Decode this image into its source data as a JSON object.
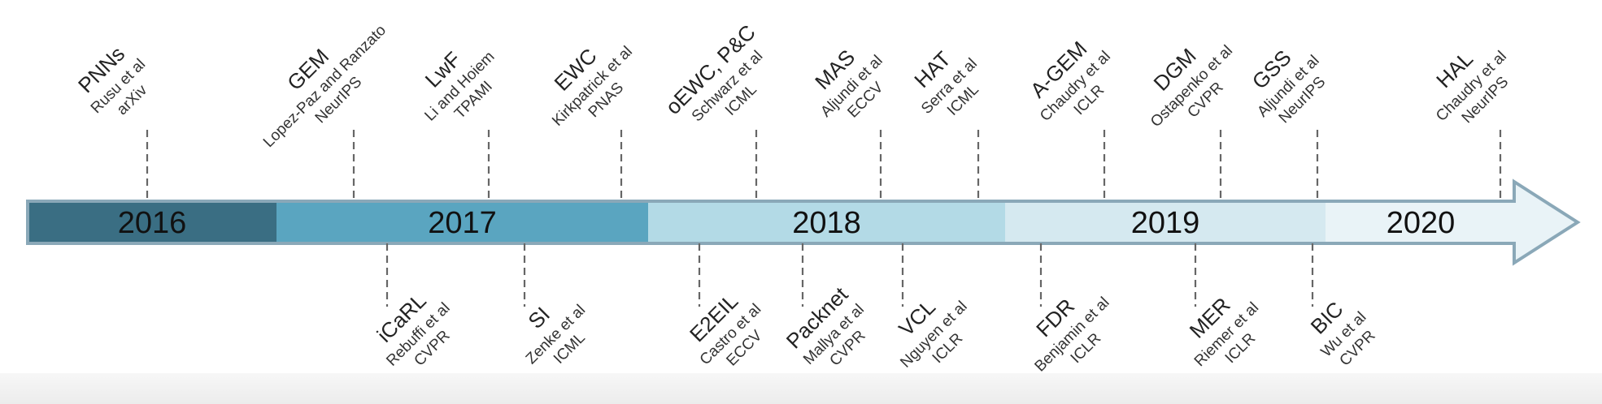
{
  "timeline": {
    "segments": [
      {
        "year": "2016",
        "color": "#3a6e83"
      },
      {
        "year": "2017",
        "color": "#5aa5c0"
      },
      {
        "year": "2018",
        "color": "#b3dae6"
      },
      {
        "year": "2019",
        "color": "#d5e9f0"
      },
      {
        "year": "2020",
        "color": "#e9f3f7"
      }
    ],
    "above": [
      {
        "name": "PNNs",
        "author": "Rusu et al",
        "venue": "arXiv"
      },
      {
        "name": "GEM",
        "author": "Lopez-Paz and Ranzato",
        "venue": "NeurIPS"
      },
      {
        "name": "LwF",
        "author": "Li and Hoiem",
        "venue": "TPAMI"
      },
      {
        "name": "EWC",
        "author": "Kirkpatrick et al",
        "venue": "PNAS"
      },
      {
        "name": "oEWC, P&C",
        "author": "Schwarz et al",
        "venue": "ICML"
      },
      {
        "name": "MAS",
        "author": "Aljundi et al",
        "venue": "ECCV"
      },
      {
        "name": "HAT",
        "author": "Serra et al",
        "venue": "ICML"
      },
      {
        "name": "A-GEM",
        "author": "Chaudry et al",
        "venue": "ICLR"
      },
      {
        "name": "DGM",
        "author": "Ostapenko et al",
        "venue": "CVPR"
      },
      {
        "name": "GSS",
        "author": "Aljundi et al",
        "venue": "NeurIPS"
      },
      {
        "name": "HAL",
        "author": "Chaudry et al",
        "venue": "NeurIPS"
      }
    ],
    "below": [
      {
        "name": "iCaRL",
        "author": "Rebuffi et al",
        "venue": "CVPR"
      },
      {
        "name": "SI",
        "author": "Zenke et al",
        "venue": "ICML"
      },
      {
        "name": "E2EIL",
        "author": "Castro et al",
        "venue": "ECCV"
      },
      {
        "name": "Packnet",
        "author": "Mallya et al",
        "venue": "CVPR"
      },
      {
        "name": "VCL",
        "author": "Nguyen et al",
        "venue": "ICLR"
      },
      {
        "name": "FDR",
        "author": "Benjamin et al",
        "venue": "ICLR"
      },
      {
        "name": "MER",
        "author": "Riemer et al",
        "venue": "ICLR"
      },
      {
        "name": "BIC",
        "author": "Wu et al",
        "venue": "CVPR"
      }
    ],
    "tick_color": "#666666",
    "arrow_outline": "#8aa8b8"
  }
}
